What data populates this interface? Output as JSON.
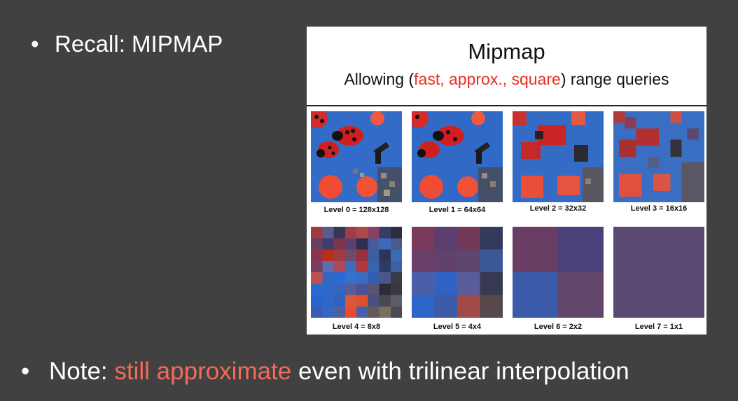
{
  "bullets": {
    "recall": {
      "marker": "•",
      "text": "Recall: MIPMAP"
    },
    "note": {
      "marker": "•",
      "prefix": "Note: ",
      "highlight": "still approximate",
      "suffix": " even with trilinear interpolation"
    }
  },
  "figure": {
    "title": "Mipmap",
    "subtitle_pre": "Allowing (",
    "subtitle_red": "fast, approx., square",
    "subtitle_post": ") range queries",
    "levels": [
      "Level 0 = 128x128",
      "Level 1 = 64x64",
      "Level 2 = 32x32",
      "Level 3 = 16x16",
      "Level 4 = 8x8",
      "Level 5 = 4x4",
      "Level 6 = 2x2",
      "Level 7 = 1x1"
    ]
  },
  "colors": {
    "background": "#414141",
    "highlight": "#f26b5b",
    "subtitle_red": "#e3301f"
  }
}
